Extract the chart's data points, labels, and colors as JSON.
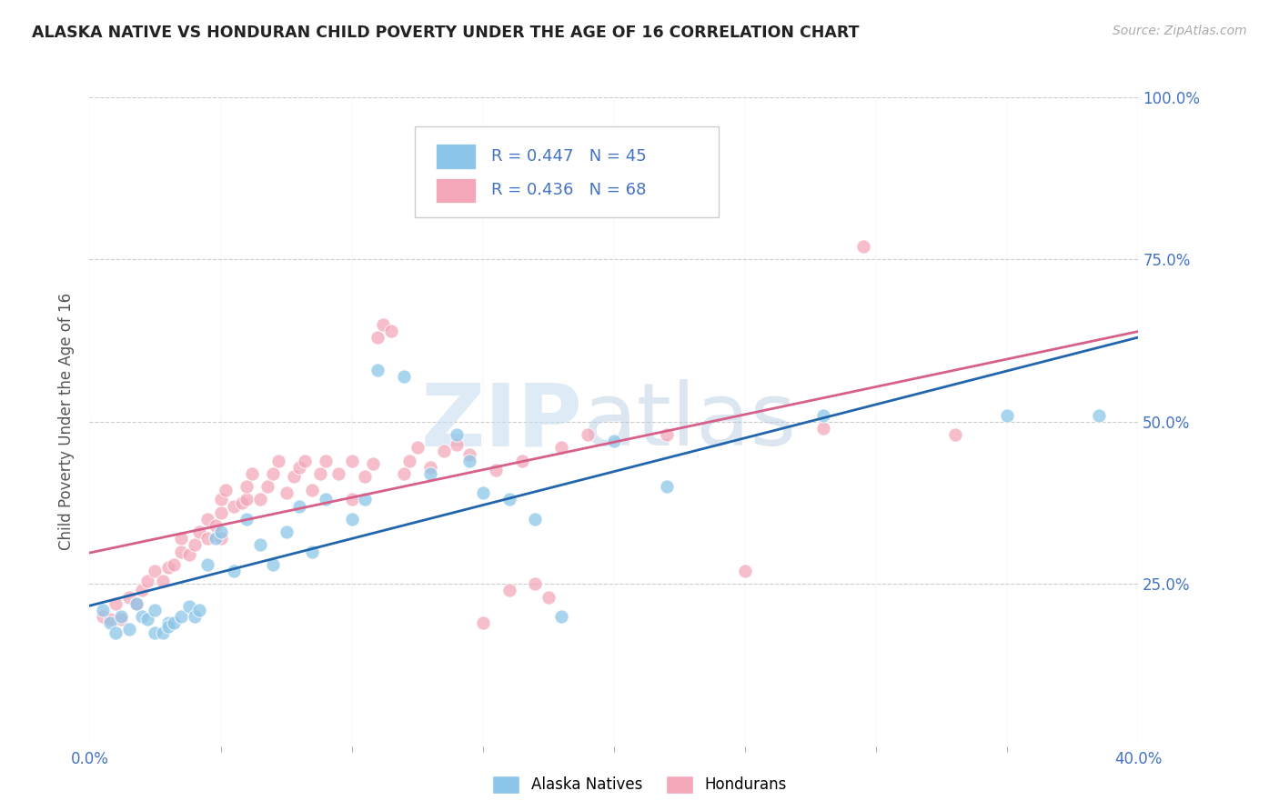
{
  "title": "ALASKA NATIVE VS HONDURAN CHILD POVERTY UNDER THE AGE OF 16 CORRELATION CHART",
  "source": "Source: ZipAtlas.com",
  "ylabel": "Child Poverty Under the Age of 16",
  "xlim": [
    0.0,
    0.4
  ],
  "ylim": [
    0.0,
    1.0
  ],
  "x_tick_vals": [
    0.0,
    0.4
  ],
  "x_tick_labels": [
    "0.0%",
    "40.0%"
  ],
  "y_tick_vals": [
    0.0,
    0.25,
    0.5,
    0.75,
    1.0
  ],
  "y_tick_labels": [
    "",
    "25.0%",
    "50.0%",
    "75.0%",
    "100.0%"
  ],
  "alaska_color": "#8dc6e8",
  "honduran_color": "#f4a7b9",
  "alaska_R": 0.447,
  "alaska_N": 45,
  "honduran_R": 0.436,
  "honduran_N": 68,
  "legend_label_alaska": "Alaska Natives",
  "legend_label_honduran": "Hondurans",
  "background_color": "#ffffff",
  "grid_color": "#cccccc",
  "alaska_line_color": "#2166ac",
  "honduran_line_color": "#d6608a",
  "tick_color": "#4472c4",
  "alaska_scatter": [
    [
      0.005,
      0.21
    ],
    [
      0.008,
      0.19
    ],
    [
      0.01,
      0.175
    ],
    [
      0.012,
      0.2
    ],
    [
      0.015,
      0.18
    ],
    [
      0.018,
      0.22
    ],
    [
      0.02,
      0.2
    ],
    [
      0.022,
      0.195
    ],
    [
      0.025,
      0.21
    ],
    [
      0.025,
      0.175
    ],
    [
      0.028,
      0.175
    ],
    [
      0.03,
      0.19
    ],
    [
      0.03,
      0.185
    ],
    [
      0.032,
      0.19
    ],
    [
      0.035,
      0.2
    ],
    [
      0.038,
      0.215
    ],
    [
      0.04,
      0.2
    ],
    [
      0.042,
      0.21
    ],
    [
      0.045,
      0.28
    ],
    [
      0.048,
      0.32
    ],
    [
      0.05,
      0.33
    ],
    [
      0.055,
      0.27
    ],
    [
      0.06,
      0.35
    ],
    [
      0.065,
      0.31
    ],
    [
      0.07,
      0.28
    ],
    [
      0.075,
      0.33
    ],
    [
      0.08,
      0.37
    ],
    [
      0.085,
      0.3
    ],
    [
      0.09,
      0.38
    ],
    [
      0.1,
      0.35
    ],
    [
      0.105,
      0.38
    ],
    [
      0.11,
      0.58
    ],
    [
      0.12,
      0.57
    ],
    [
      0.13,
      0.42
    ],
    [
      0.14,
      0.48
    ],
    [
      0.145,
      0.44
    ],
    [
      0.15,
      0.39
    ],
    [
      0.16,
      0.38
    ],
    [
      0.17,
      0.35
    ],
    [
      0.18,
      0.2
    ],
    [
      0.2,
      0.47
    ],
    [
      0.22,
      0.4
    ],
    [
      0.28,
      0.51
    ],
    [
      0.35,
      0.51
    ],
    [
      0.385,
      0.51
    ]
  ],
  "honduran_scatter": [
    [
      0.005,
      0.2
    ],
    [
      0.008,
      0.195
    ],
    [
      0.01,
      0.22
    ],
    [
      0.012,
      0.195
    ],
    [
      0.015,
      0.23
    ],
    [
      0.018,
      0.22
    ],
    [
      0.02,
      0.24
    ],
    [
      0.022,
      0.255
    ],
    [
      0.025,
      0.27
    ],
    [
      0.028,
      0.255
    ],
    [
      0.03,
      0.275
    ],
    [
      0.032,
      0.28
    ],
    [
      0.035,
      0.3
    ],
    [
      0.035,
      0.32
    ],
    [
      0.038,
      0.295
    ],
    [
      0.04,
      0.31
    ],
    [
      0.042,
      0.33
    ],
    [
      0.045,
      0.32
    ],
    [
      0.045,
      0.35
    ],
    [
      0.048,
      0.34
    ],
    [
      0.05,
      0.32
    ],
    [
      0.05,
      0.36
    ],
    [
      0.05,
      0.38
    ],
    [
      0.052,
      0.395
    ],
    [
      0.055,
      0.37
    ],
    [
      0.058,
      0.375
    ],
    [
      0.06,
      0.38
    ],
    [
      0.06,
      0.4
    ],
    [
      0.062,
      0.42
    ],
    [
      0.065,
      0.38
    ],
    [
      0.068,
      0.4
    ],
    [
      0.07,
      0.42
    ],
    [
      0.072,
      0.44
    ],
    [
      0.075,
      0.39
    ],
    [
      0.078,
      0.415
    ],
    [
      0.08,
      0.43
    ],
    [
      0.082,
      0.44
    ],
    [
      0.085,
      0.395
    ],
    [
      0.088,
      0.42
    ],
    [
      0.09,
      0.44
    ],
    [
      0.095,
      0.42
    ],
    [
      0.1,
      0.38
    ],
    [
      0.1,
      0.44
    ],
    [
      0.105,
      0.415
    ],
    [
      0.108,
      0.435
    ],
    [
      0.11,
      0.63
    ],
    [
      0.112,
      0.65
    ],
    [
      0.115,
      0.64
    ],
    [
      0.12,
      0.42
    ],
    [
      0.122,
      0.44
    ],
    [
      0.125,
      0.46
    ],
    [
      0.13,
      0.43
    ],
    [
      0.135,
      0.455
    ],
    [
      0.14,
      0.465
    ],
    [
      0.145,
      0.45
    ],
    [
      0.15,
      0.19
    ],
    [
      0.155,
      0.425
    ],
    [
      0.16,
      0.24
    ],
    [
      0.165,
      0.44
    ],
    [
      0.17,
      0.25
    ],
    [
      0.175,
      0.23
    ],
    [
      0.18,
      0.46
    ],
    [
      0.19,
      0.48
    ],
    [
      0.22,
      0.48
    ],
    [
      0.25,
      0.27
    ],
    [
      0.28,
      0.49
    ],
    [
      0.295,
      0.77
    ],
    [
      0.33,
      0.48
    ]
  ]
}
